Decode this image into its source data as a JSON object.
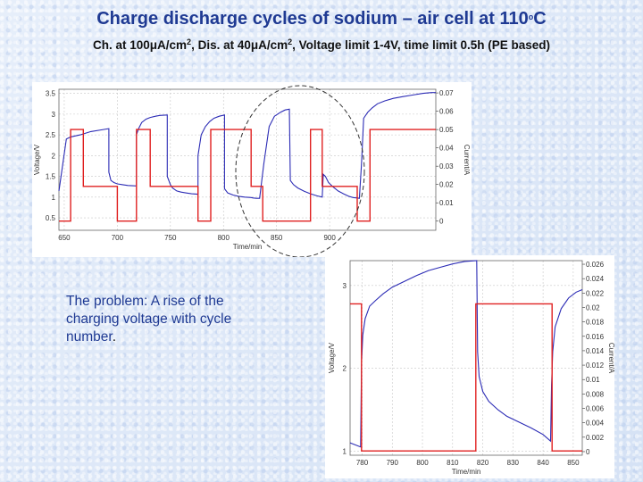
{
  "slide": {
    "title_main": "Charge discharge cycles of sodium – air cell at 110",
    "title_deg": "o",
    "title_unit": "C",
    "sub_a": "Ch. at 100μA/cm",
    "sub_b": ", Dis. at 40μA/cm",
    "sub_c": ", Voltage limit 1-4V, time limit 0.5h (PE based)",
    "sub_sup": "2",
    "problem_text": "The problem: A rise of the charging voltage with cycle number",
    "problem_period": "."
  },
  "colors": {
    "voltage": "#2b2bb5",
    "current": "#e02020",
    "grid": "#c8c8c8",
    "circle": "#333333"
  },
  "chart_data": [
    {
      "type": "line",
      "title": "",
      "xlabel": "Time/min",
      "ylabel": "Voltage/V",
      "y2label": "Current/A",
      "xlim": [
        645,
        1000
      ],
      "ylim": [
        0.2,
        3.6
      ],
      "y2lim": [
        -0.005,
        0.072
      ],
      "xticks": [
        650,
        700,
        750,
        800,
        850,
        900
      ],
      "xtick_labels": [
        "650",
        "700",
        "750",
        "800",
        "850",
        "900"
      ],
      "yticks": [
        0.5,
        1,
        1.5,
        2,
        2.5,
        3,
        3.5
      ],
      "ytick_labels": [
        "0.5",
        "1",
        "1.5",
        "2",
        "2.5",
        "3",
        "3.5"
      ],
      "y2ticks": [
        0,
        0.01,
        0.02,
        0.03,
        0.04,
        0.05,
        0.06,
        0.07
      ],
      "y2tick_labels": [
        "0",
        "0.01",
        "0.02",
        "0.03",
        "0.04",
        "0.05",
        "0.06",
        "0.07"
      ],
      "grid": true,
      "series": [
        {
          "axis": "left",
          "color_key": "voltage",
          "x": [
            645,
            652,
            656,
            665,
            675,
            685,
            692,
            692,
            694,
            697,
            700,
            705,
            710,
            718,
            718,
            720,
            723,
            727,
            731,
            736,
            740,
            747,
            747,
            750,
            752,
            756,
            760,
            765,
            770,
            776,
            776,
            779,
            783,
            787,
            791,
            796,
            801,
            801,
            804,
            809,
            814,
            820,
            826,
            828,
            831,
            834,
            838,
            843,
            848,
            854,
            858,
            862,
            863,
            866,
            870,
            876,
            882,
            888,
            893,
            894,
            896,
            899,
            903,
            908,
            913,
            918,
            922,
            926,
            928,
            930,
            932,
            936,
            940,
            945,
            952,
            960,
            968,
            978,
            988,
            996,
            1000
          ],
          "y": [
            1.15,
            2.4,
            2.45,
            2.5,
            2.58,
            2.62,
            2.65,
            1.6,
            1.4,
            1.35,
            1.32,
            1.3,
            1.28,
            1.27,
            2.5,
            2.65,
            2.8,
            2.88,
            2.92,
            2.95,
            2.97,
            2.98,
            1.5,
            1.3,
            1.22,
            1.15,
            1.12,
            1.1,
            1.08,
            1.07,
            2.0,
            2.5,
            2.7,
            2.82,
            2.9,
            2.95,
            2.98,
            1.2,
            1.1,
            1.05,
            1.02,
            1.0,
            0.99,
            0.98,
            0.97,
            0.97,
            1.8,
            2.7,
            2.95,
            3.05,
            3.1,
            3.12,
            1.4,
            1.3,
            1.22,
            1.14,
            1.08,
            1.03,
            1.0,
            1.55,
            1.5,
            1.35,
            1.25,
            1.15,
            1.08,
            1.02,
            0.99,
            0.98,
            0.97,
            1.8,
            2.9,
            3.05,
            3.15,
            3.25,
            3.32,
            3.38,
            3.42,
            3.46,
            3.5,
            3.52,
            3.52
          ]
        },
        {
          "axis": "right",
          "color_key": "current",
          "x": [
            645,
            656,
            656,
            668,
            668,
            700,
            700,
            718,
            718,
            731,
            731,
            776,
            776,
            788,
            788,
            826,
            826,
            837,
            837,
            882,
            882,
            893,
            893,
            926,
            926,
            938,
            938,
            1000
          ],
          "y": [
            0,
            0,
            0.05,
            0.05,
            0.019,
            0.019,
            0,
            0,
            0.05,
            0.05,
            0.019,
            0.019,
            0,
            0,
            0.05,
            0.05,
            0.019,
            0.019,
            0,
            0,
            0.05,
            0.05,
            0.019,
            0.019,
            0,
            0,
            0.05,
            0.05
          ]
        }
      ],
      "annotation": "dashed ellipse around the middle cycle"
    },
    {
      "type": "line",
      "title": "",
      "xlabel": "Time/min",
      "ylabel": "Voltage/V",
      "y2label": "Current/A",
      "xlim": [
        776,
        853
      ],
      "ylim": [
        0.95,
        3.3
      ],
      "y2lim": [
        -0.0005,
        0.0265
      ],
      "xticks": [
        780,
        790,
        800,
        810,
        820,
        830,
        840,
        850
      ],
      "xtick_labels": [
        "780",
        "790",
        "800",
        "810",
        "820",
        "830",
        "840",
        "850"
      ],
      "yticks": [
        1,
        2,
        3
      ],
      "ytick_labels": [
        "1",
        "2",
        "3"
      ],
      "y2ticks": [
        0,
        0.002,
        0.004,
        0.006,
        0.008,
        0.01,
        0.012,
        0.014,
        0.016,
        0.018,
        0.02,
        0.022,
        0.024,
        0.026
      ],
      "y2tick_labels": [
        "0",
        "0.002",
        "0.004",
        "0.006",
        "0.008",
        "0.01",
        "0.012",
        "0.014",
        "0.016",
        "0.018",
        "0.02",
        "0.022",
        "0.024",
        "0.026"
      ],
      "grid": true,
      "series": [
        {
          "axis": "left",
          "color_key": "voltage",
          "x": [
            776,
            779.5,
            779.8,
            780.2,
            781,
            782.5,
            784.5,
            787,
            790,
            794,
            798,
            802,
            806,
            810,
            814,
            818,
            818.3,
            818.8,
            820,
            822,
            825,
            828,
            832,
            836,
            840,
            842.5,
            842.8,
            843.2,
            844,
            846,
            848.5,
            851,
            853
          ],
          "y": [
            1.1,
            1.05,
            2.05,
            2.4,
            2.6,
            2.75,
            2.82,
            2.9,
            2.98,
            3.05,
            3.12,
            3.18,
            3.22,
            3.26,
            3.29,
            3.3,
            2.2,
            1.9,
            1.72,
            1.6,
            1.5,
            1.42,
            1.35,
            1.28,
            1.2,
            1.12,
            1.8,
            2.2,
            2.5,
            2.72,
            2.85,
            2.92,
            2.95
          ],
          "note": "charge plateau rises then a sharp drop at charge/discharge switching"
        },
        {
          "axis": "right",
          "color_key": "current",
          "x": [
            776,
            779.8,
            779.8,
            817.7,
            817.7,
            843,
            843,
            853
          ],
          "y": [
            0.0205,
            0.0205,
            0.0001,
            0.0001,
            0.0205,
            0.0205,
            0.0001,
            0.0001
          ]
        }
      ]
    }
  ]
}
